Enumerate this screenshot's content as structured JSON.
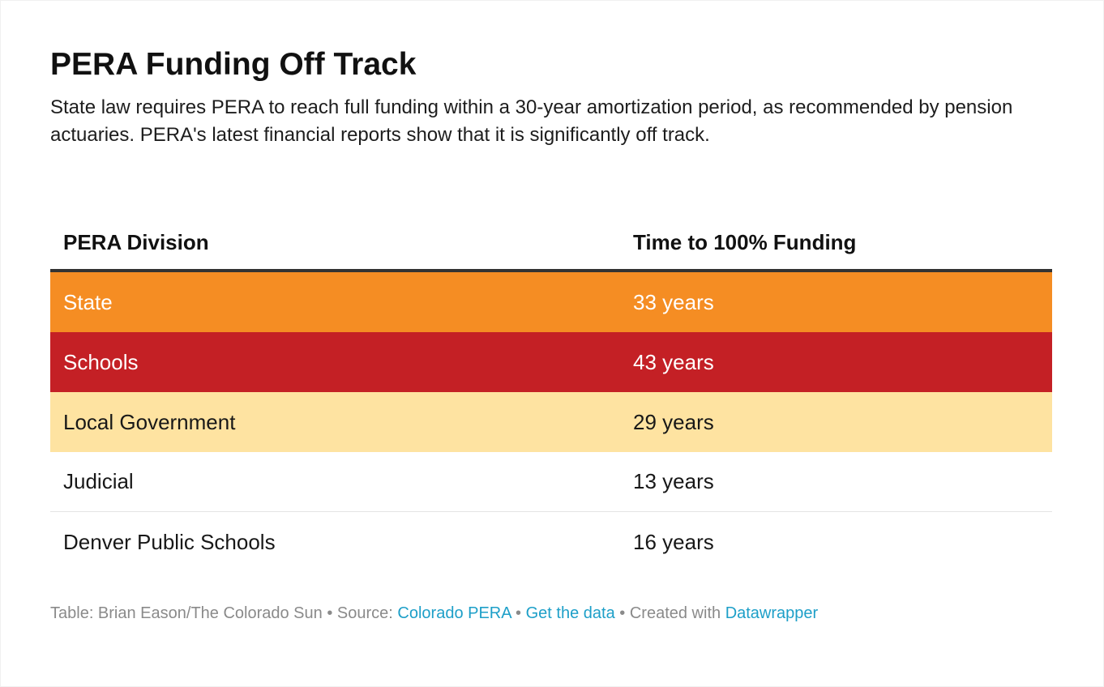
{
  "title": "PERA Funding Off Track",
  "subtitle": "State law requires PERA to reach full funding within a 30-year amortization period, as recommended by pension actuaries. PERA's latest financial reports show that it is significantly off track.",
  "chart_data": {
    "type": "table",
    "columns": [
      "PERA Division",
      "Time to 100% Funding"
    ],
    "rows": [
      {
        "division": "State",
        "time": "33 years",
        "years": 33,
        "bg": "#f58d23",
        "fg": "#ffffff"
      },
      {
        "division": "Schools",
        "time": "43 years",
        "years": 43,
        "bg": "#c42025",
        "fg": "#ffffff"
      },
      {
        "division": "Local Government",
        "time": "29 years",
        "years": 29,
        "bg": "#fee3a1",
        "fg": "#181818"
      },
      {
        "division": "Judicial",
        "time": "13 years",
        "years": 13,
        "bg": "#ffffff",
        "fg": "#181818"
      },
      {
        "division": "Denver Public Schools",
        "time": "16 years",
        "years": 16,
        "bg": "#ffffff",
        "fg": "#181818"
      }
    ]
  },
  "footer": {
    "credit": "Table: Brian Eason/The Colorado Sun",
    "sep": "•",
    "source_label": "Source:",
    "source_link": "Colorado PERA",
    "get_data": "Get the data",
    "created_label": "Created with",
    "created_link": "Datawrapper"
  },
  "colors": {
    "link": "#1d9fc8",
    "header_rule": "#333333"
  }
}
